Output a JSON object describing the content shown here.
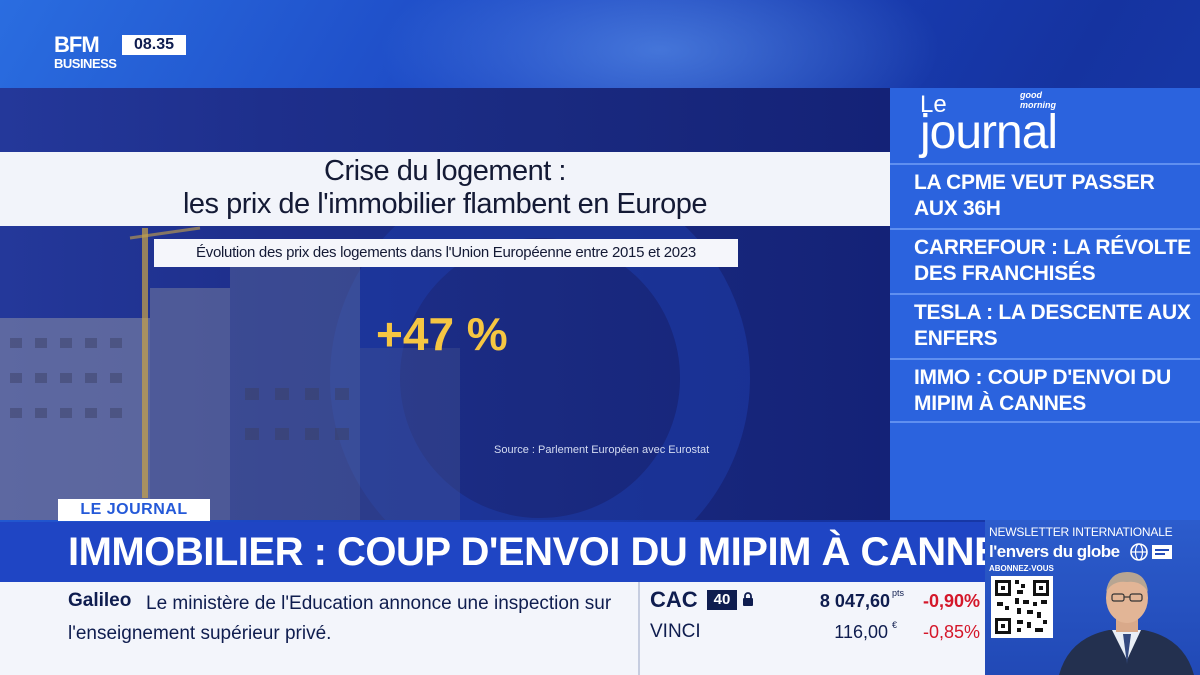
{
  "channel": {
    "logo_line1": "BFM",
    "logo_line2": "BUSINESS",
    "time": "08.35"
  },
  "headline": {
    "line1": "Crise du logement :",
    "line2": "les prix de l'immobilier flambent en Europe",
    "subtitle": "Évolution des prix des logements dans l'Union Européenne entre 2015 et 2023",
    "value": "+47 %",
    "source": "Source : Parlement Européen avec Eurostat"
  },
  "journal": {
    "brand_le": "Le",
    "brand_gm": "good morning",
    "brand_journal": "journal",
    "items": [
      {
        "label": "LA CPME VEUT PASSER AUX 36H"
      },
      {
        "label": "CARREFOUR : LA RÉVOLTE DES FRANCHISÉS"
      },
      {
        "label": "TESLA : LA DESCENTE AUX ENFERS"
      },
      {
        "label": "IMMO : COUP D'ENVOI DU MIPIM À CANNES"
      }
    ]
  },
  "lower_third": {
    "tag": "LE JOURNAL",
    "title": "IMMOBILIER : COUP D'ENVOI DU MIPIM À CANNES"
  },
  "ticker": {
    "source": "Galileo",
    "text": "Le ministère de l'Education annonce une inspection sur l'enseignement supérieur privé."
  },
  "market": {
    "index_name": "CAC",
    "index_badge": "40",
    "index_value": "8 047,60",
    "index_unit": "pts",
    "index_change": "-0,90%",
    "stock_name": "VINCI",
    "stock_value": "116,00",
    "stock_unit": "€",
    "stock_change": "-0,85%",
    "change_color": "#d4172a"
  },
  "promo": {
    "top": "NEWSLETTER INTERNATIONALE",
    "title": "l'envers du globe",
    "subscribe": "ABONNEZ-VOUS"
  }
}
